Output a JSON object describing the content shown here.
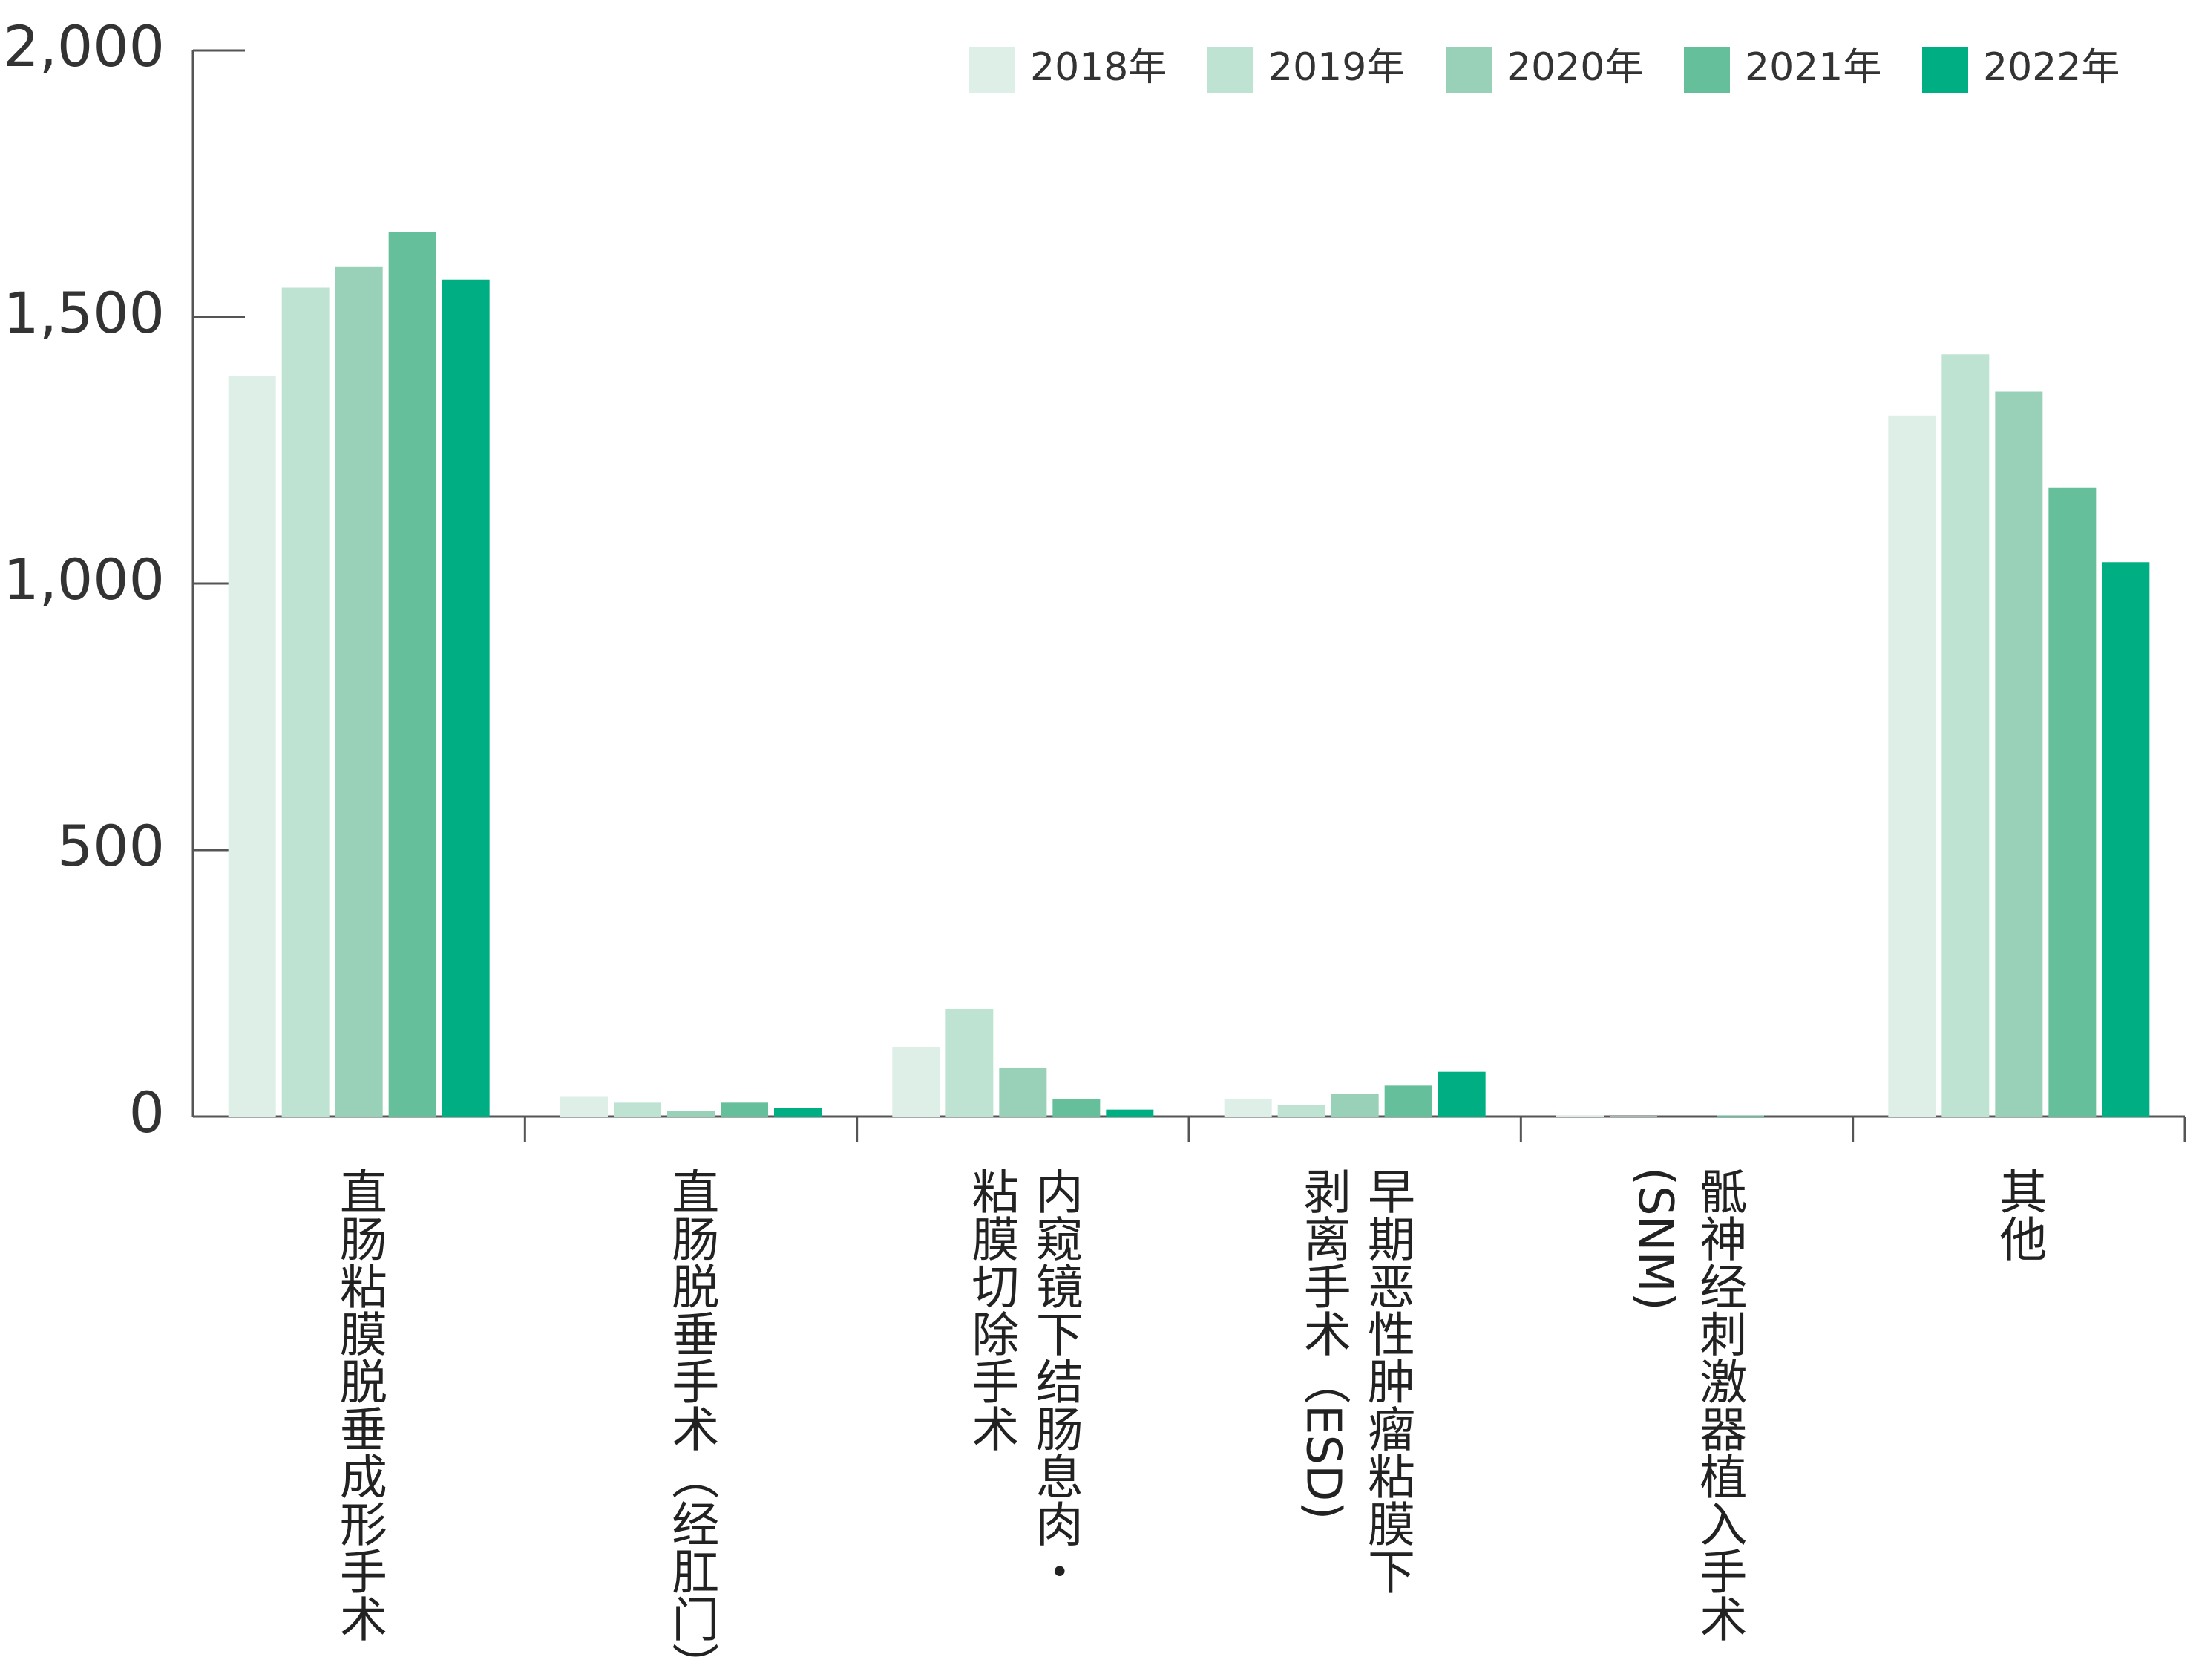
{
  "chart_data": {
    "type": "bar",
    "categories": [
      "直肠粘膜脱垂成形手术",
      "直肠脱垂手术（经肛门）",
      "内窥镜下结肠息肉・\n粘膜切除手术",
      "早期恶性肿瘤粘膜下\n剥离手术（ESD)",
      "骶神经刺激器植入手术\n(SNM)",
      "其他"
    ],
    "series": [
      {
        "name": "2018年",
        "color": "#deefe8",
        "values": [
          1390,
          37,
          131,
          32,
          2,
          1315
        ]
      },
      {
        "name": "2019年",
        "color": "#bfe3d2",
        "values": [
          1555,
          26,
          202,
          21,
          1,
          1430
        ]
      },
      {
        "name": "2020年",
        "color": "#98d1b7",
        "values": [
          1595,
          10,
          92,
          42,
          0,
          1360
        ]
      },
      {
        "name": "2021年",
        "color": "#66bf9b",
        "values": [
          1660,
          26,
          32,
          58,
          2,
          1180
        ]
      },
      {
        "name": "2022年",
        "color": "#00ae84",
        "values": [
          1570,
          16,
          13,
          84,
          0,
          1040
        ]
      }
    ],
    "ylim": [
      0,
      2000
    ],
    "yticks": [
      0,
      500,
      {
        "value": 1000,
        "label": "1,000"
      },
      {
        "value": 1500,
        "label": "1,500"
      },
      {
        "value": 2000,
        "label": "2,000"
      }
    ],
    "legend": "top-right"
  }
}
